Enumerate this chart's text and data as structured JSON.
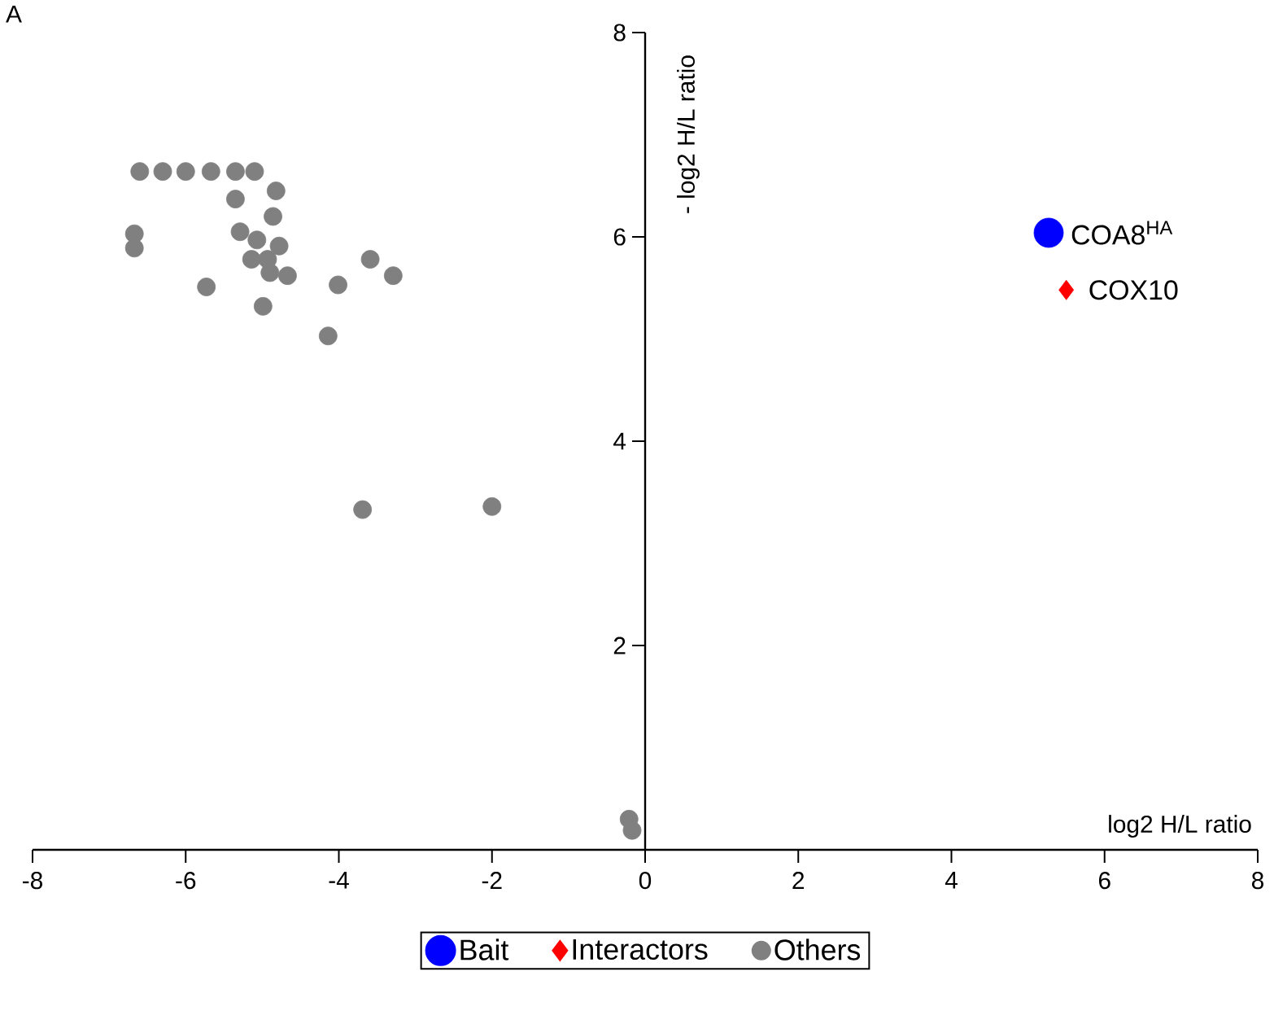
{
  "chart_data": {
    "type": "scatter",
    "xlabel": "log2 H/L ratio",
    "ylabel": "- log2 H/L ratio",
    "xlim": [
      -8,
      8
    ],
    "xticks": [
      -8,
      -6,
      -4,
      -2,
      0,
      2,
      4,
      6,
      8
    ],
    "ylim": [
      0,
      8
    ],
    "yticks": [
      2,
      4,
      6,
      8
    ],
    "grid": false,
    "legend": "bottom",
    "series": [
      {
        "name": "Bait",
        "color": "#0000ff",
        "marker": "circle",
        "x": [
          5.27
        ],
        "values": [
          6.04
        ]
      },
      {
        "name": "Interactors",
        "color": "#ff0000",
        "marker": "diamond",
        "x": [
          5.5
        ],
        "values": [
          5.48
        ]
      },
      {
        "name": "Others",
        "color": "#808080",
        "marker": "circle",
        "x": [
          -6.6,
          -6.3,
          -6.0,
          -5.67,
          -5.35,
          -5.1,
          -5.35,
          -4.82,
          -4.86,
          -6.67,
          -6.67,
          -5.29,
          -5.07,
          -4.78,
          -5.14,
          -4.93,
          -4.9,
          -4.67,
          -5.73,
          -3.59,
          -3.29,
          -4.01,
          -4.99,
          -4.14,
          -3.69,
          -2.0,
          -0.21,
          -0.17
        ],
        "values": [
          6.64,
          6.64,
          6.64,
          6.64,
          6.64,
          6.64,
          6.37,
          6.45,
          6.2,
          6.03,
          5.89,
          6.05,
          5.97,
          5.91,
          5.78,
          5.78,
          5.65,
          5.62,
          5.51,
          5.78,
          5.62,
          5.53,
          5.32,
          5.03,
          3.33,
          3.36,
          0.3,
          0.19
        ]
      }
    ],
    "annotations": [
      "A",
      {
        "text": "COA8$^{HA}$",
        "x": 5.27,
        "y": 6.04
      },
      {
        "text": "COX10",
        "x": 5.5,
        "y": 5.48
      }
    ]
  }
}
